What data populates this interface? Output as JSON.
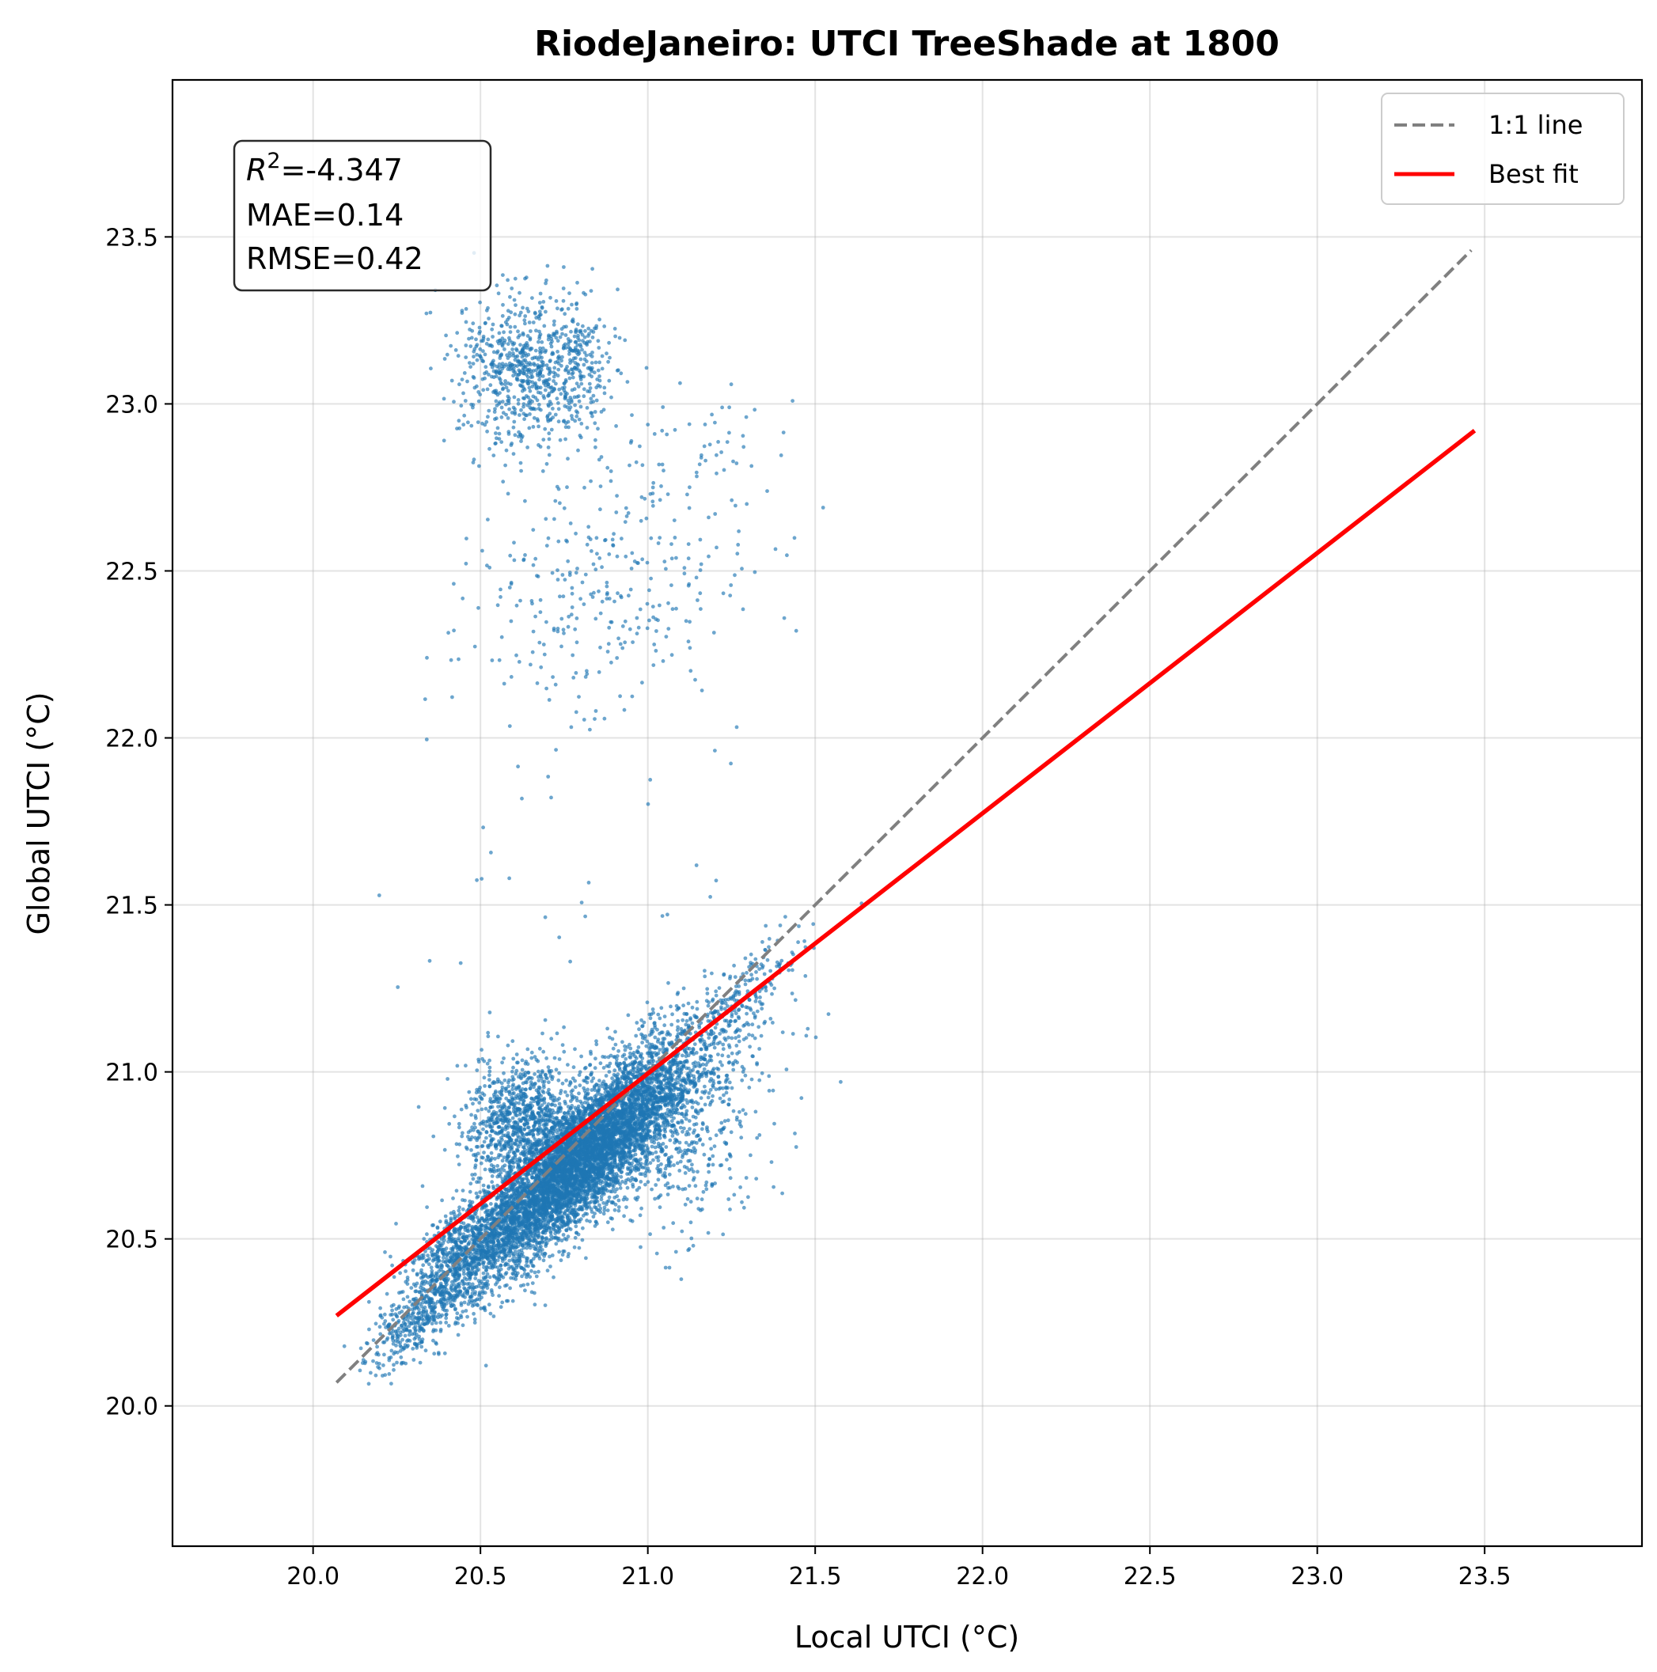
{
  "chart_data": {
    "type": "scatter",
    "title": "RiodeJaneiro: UTCI TreeShade at 1800",
    "xlabel": "Local UTCI (°C)",
    "ylabel": "Global UTCI (°C)",
    "xlim": [
      19.58,
      23.97
    ],
    "ylim": [
      19.58,
      23.97
    ],
    "xticks": [
      "20.0",
      "20.5",
      "21.0",
      "21.5",
      "22.0",
      "22.5",
      "23.0",
      "23.5"
    ],
    "yticks": [
      "20.0",
      "20.5",
      "21.0",
      "21.5",
      "22.0",
      "22.5",
      "23.0",
      "23.5"
    ],
    "grid": true,
    "legend_position": "top-right",
    "point_color": "#1f77b4",
    "stats": {
      "r2_label": "R",
      "r2_sup": "2",
      "r2_value": "=-4.347",
      "mae": "MAE=0.14",
      "rmse": "RMSE=0.42"
    },
    "series": [
      {
        "name": "1:1 line",
        "style": "dashed",
        "color": "#808080",
        "x": [
          20.07,
          23.46
        ],
        "y": [
          20.07,
          23.46
        ]
      },
      {
        "name": "Best fit",
        "style": "solid",
        "color": "#ff0000",
        "x": [
          20.07,
          23.47
        ],
        "y": [
          20.27,
          22.92
        ]
      }
    ],
    "point_clusters": [
      {
        "cx": 20.78,
        "cy": 20.72,
        "sx": 0.17,
        "sy": 0.17,
        "rho": 0.85,
        "n": 6500
      },
      {
        "cx": 20.62,
        "cy": 20.86,
        "sx": 0.08,
        "sy": 0.09,
        "rho": 0.2,
        "n": 900
      },
      {
        "cx": 21.05,
        "cy": 20.95,
        "sx": 0.16,
        "sy": 0.14,
        "rho": 0.5,
        "n": 700
      },
      {
        "cx": 20.42,
        "cy": 20.42,
        "sx": 0.08,
        "sy": 0.1,
        "rho": 0.6,
        "n": 600
      },
      {
        "cx": 20.3,
        "cy": 20.25,
        "sx": 0.07,
        "sy": 0.07,
        "rho": 0.7,
        "n": 250
      },
      {
        "cx": 21.1,
        "cy": 20.75,
        "sx": 0.12,
        "sy": 0.12,
        "rho": 0.0,
        "n": 250
      },
      {
        "cx": 21.3,
        "cy": 21.25,
        "sx": 0.08,
        "sy": 0.08,
        "rho": 0.7,
        "n": 150
      },
      {
        "cx": 20.62,
        "cy": 23.1,
        "sx": 0.09,
        "sy": 0.12,
        "rho": 0.0,
        "n": 600
      },
      {
        "cx": 20.78,
        "cy": 23.12,
        "sx": 0.06,
        "sy": 0.1,
        "rho": 0.0,
        "n": 250
      },
      {
        "cx": 20.9,
        "cy": 22.45,
        "sx": 0.22,
        "sy": 0.2,
        "rho": 0.2,
        "n": 320
      },
      {
        "cx": 21.1,
        "cy": 22.9,
        "sx": 0.18,
        "sy": 0.12,
        "rho": 0.0,
        "n": 45
      },
      {
        "cx": 20.75,
        "cy": 21.45,
        "sx": 0.35,
        "sy": 0.35,
        "rho": 0.0,
        "n": 45
      }
    ]
  }
}
